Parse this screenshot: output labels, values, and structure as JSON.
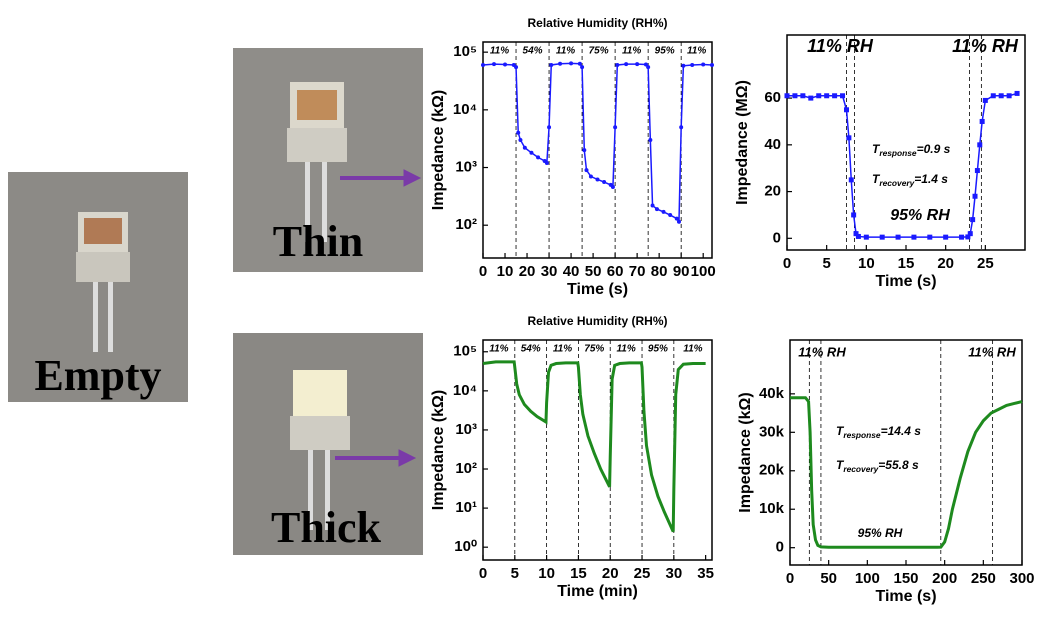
{
  "photo_labels": [
    "Empty",
    "Thin",
    "Thick"
  ],
  "chart_data": [
    {
      "type": "line",
      "title": "Relative Humidity (RH%)",
      "x_label": "Time (s)",
      "y_label": "Impedance (kΩ)",
      "log_y": true,
      "color": "#1a1aff",
      "marker": "circle",
      "xlim": [
        0,
        104
      ],
      "xticks": [
        0,
        10,
        20,
        30,
        40,
        50,
        60,
        70,
        80,
        90,
        100
      ],
      "ylim": [
        27,
        150000
      ],
      "yticks": [
        {
          "value": 100,
          "label": "10²"
        },
        {
          "value": 1000,
          "label": "10³"
        },
        {
          "value": 10000,
          "label": "10⁴"
        },
        {
          "value": 100000,
          "label": "10⁵"
        }
      ],
      "vlines": [
        15,
        30,
        45,
        60,
        75,
        90
      ],
      "region_labels": [
        "11%",
        "54%",
        "11%",
        "75%",
        "11%",
        "95%",
        "11%"
      ],
      "x": [
        0,
        5,
        10,
        14,
        15,
        16,
        17,
        19,
        22,
        25,
        28,
        29,
        30,
        31,
        35,
        40,
        44,
        45,
        46,
        47,
        49,
        52,
        55,
        58,
        59,
        60,
        61,
        65,
        70,
        74,
        75,
        76,
        77,
        79,
        82,
        85,
        88,
        89,
        90,
        91,
        95,
        100,
        104
      ],
      "values": [
        60000,
        62000,
        61000,
        60000,
        55000,
        4000,
        3000,
        2200,
        1800,
        1500,
        1300,
        1200,
        5000,
        60000,
        63000,
        64000,
        63000,
        55000,
        2000,
        900,
        700,
        620,
        560,
        500,
        460,
        5000,
        60000,
        62000,
        62000,
        61000,
        55000,
        3000,
        220,
        190,
        170,
        150,
        130,
        115,
        5000,
        58000,
        60000,
        61000,
        60000
      ]
    },
    {
      "type": "line",
      "x_label": "Time (s)",
      "y_label": "Impedance (MΩ)",
      "log_y": false,
      "color": "#1a1aff",
      "marker": "square",
      "xlim": [
        0,
        30
      ],
      "xticks": [
        0,
        5,
        10,
        15,
        20,
        25
      ],
      "ylim": [
        -5,
        87
      ],
      "yticks": [
        0,
        20,
        40,
        60
      ],
      "vlines": [
        7.5,
        8.5,
        23,
        24.5
      ],
      "annotations": [
        "11% RH",
        "11% RH",
        "95% RH",
        {
          "symbol": "T",
          "subscript": "response",
          "text": "=0.9 s"
        },
        {
          "symbol": "T",
          "subscript": "recovery",
          "text": "=1.4 s"
        }
      ],
      "x": [
        0,
        1,
        2,
        3,
        4,
        5,
        6,
        7,
        7.5,
        7.8,
        8.1,
        8.4,
        8.7,
        9,
        10,
        12,
        14,
        16,
        18,
        20,
        22,
        22.8,
        23.1,
        23.4,
        23.7,
        24,
        24.3,
        24.6,
        25,
        26,
        27,
        28,
        29
      ],
      "values": [
        61,
        61,
        61,
        60,
        61,
        61,
        61,
        61,
        55,
        43,
        25,
        10,
        2,
        0.8,
        0.5,
        0.5,
        0.5,
        0.5,
        0.5,
        0.5,
        0.5,
        0.6,
        2,
        8,
        18,
        29,
        40,
        50,
        59,
        61,
        61,
        61,
        62
      ]
    },
    {
      "type": "line",
      "title": "Relative Humidity (RH%)",
      "x_label": "Time (min)",
      "y_label": "Impedance (kΩ)",
      "log_y": true,
      "color": "#1e8a1e",
      "xlim": [
        0,
        36
      ],
      "xticks": [
        0,
        5,
        10,
        15,
        20,
        25,
        30,
        35
      ],
      "ylim": [
        0.47,
        200000
      ],
      "yticks": [
        {
          "value": 1,
          "label": "10⁰"
        },
        {
          "value": 10,
          "label": "10¹"
        },
        {
          "value": 100,
          "label": "10²"
        },
        {
          "value": 1000,
          "label": "10³"
        },
        {
          "value": 10000,
          "label": "10⁴"
        },
        {
          "value": 100000,
          "label": "10⁵"
        }
      ],
      "vlines": [
        5,
        10,
        15,
        20,
        25,
        30
      ],
      "region_labels": [
        "11%",
        "54%",
        "11%",
        "75%",
        "11%",
        "95%",
        "11%"
      ],
      "x": [
        0,
        2,
        4,
        4.9,
        5,
        5.3,
        5.7,
        6.5,
        7.5,
        8.5,
        9.9,
        10,
        10.3,
        10.7,
        11.5,
        13,
        14.9,
        15,
        15.3,
        15.7,
        16.5,
        17.5,
        18.5,
        19.9,
        20,
        20.3,
        20.7,
        21.5,
        23,
        24.9,
        25,
        25.3,
        25.7,
        26.5,
        27.5,
        28.5,
        29.9,
        30,
        30.3,
        30.7,
        31.5,
        33,
        35
      ],
      "values": [
        50000,
        55000,
        55000,
        55000,
        40000,
        15000,
        8000,
        4500,
        3000,
        2200,
        1600,
        5000,
        30000,
        45000,
        50000,
        52000,
        52000,
        40000,
        8000,
        2500,
        700,
        250,
        100,
        35,
        200,
        20000,
        45000,
        50000,
        52000,
        52000,
        40000,
        3000,
        400,
        70,
        20,
        8,
        2.5,
        30,
        8000,
        35000,
        48000,
        50000,
        50000
      ]
    },
    {
      "type": "line",
      "x_label": "Time (s)",
      "y_label": "Impedance (kΩ)",
      "log_y": false,
      "color": "#1e8a1e",
      "xlim": [
        0,
        300
      ],
      "xticks": [
        0,
        50,
        100,
        150,
        200,
        250,
        300
      ],
      "ylim": [
        -4500,
        54000
      ],
      "yticks": [
        0,
        {
          "value": 10000,
          "label": "10k"
        },
        {
          "value": 20000,
          "label": "20k"
        },
        {
          "value": 30000,
          "label": "30k"
        },
        {
          "value": 40000,
          "label": "40k"
        }
      ],
      "vlines": [
        25,
        40,
        195,
        262
      ],
      "annotations": [
        "11% RH",
        "11% RH",
        "95% RH",
        {
          "symbol": "T",
          "subscript": "response",
          "text": "=14.4 s"
        },
        {
          "symbol": "T",
          "subscript": "recovery",
          "text": "=55.8 s"
        }
      ],
      "x": [
        0,
        10,
        20,
        24,
        26,
        28,
        30,
        33,
        36,
        40,
        50,
        100,
        150,
        190,
        195,
        200,
        205,
        210,
        220,
        230,
        240,
        250,
        260,
        270,
        280,
        290,
        300
      ],
      "values": [
        39000,
        39000,
        39000,
        38000,
        30000,
        15000,
        6000,
        2000,
        600,
        200,
        100,
        100,
        100,
        100,
        150,
        1500,
        5000,
        10000,
        18000,
        25000,
        30000,
        33000,
        35000,
        36000,
        37000,
        37500,
        38000
      ]
    }
  ]
}
